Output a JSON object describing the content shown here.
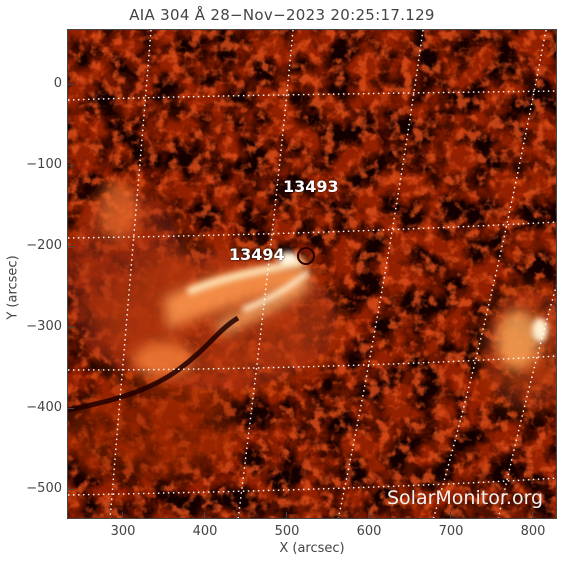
{
  "title": "AIA 304 Å 28−Nov−2023 20:25:17.129",
  "xlabel": "X (arcsec)",
  "ylabel": "Y (arcsec)",
  "x_ticks": [
    "300",
    "400",
    "500",
    "600",
    "700",
    "800"
  ],
  "y_ticks": [
    "0",
    "−100",
    "−200",
    "−300",
    "−400",
    "−500"
  ],
  "active_regions": [
    {
      "label": "13493"
    },
    {
      "label": "13494"
    }
  ],
  "watermark": "SolarMonitor.org",
  "colors": {
    "background": "#140000",
    "chromosphere_mid": "#8a1800",
    "bright": "#ffd9a0",
    "grid": "#ffffff"
  }
}
